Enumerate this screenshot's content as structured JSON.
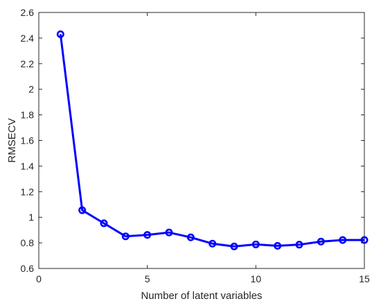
{
  "chart_data": {
    "type": "line",
    "title": "",
    "xlabel": "Number of latent variables",
    "ylabel": "RMSECV",
    "xlim": [
      0,
      15
    ],
    "ylim": [
      0.6,
      2.6
    ],
    "xticks": [
      0,
      5,
      10,
      15
    ],
    "yticks": [
      0.6,
      0.8,
      1,
      1.2,
      1.4,
      1.6,
      1.8,
      2,
      2.2,
      2.4,
      2.6
    ],
    "xtick_labels": [
      "0",
      "5",
      "10",
      "15"
    ],
    "ytick_labels": [
      "0.6",
      "0.8",
      "1",
      "1.2",
      "1.4",
      "1.6",
      "1.8",
      "2",
      "2.2",
      "2.4",
      "2.6"
    ],
    "grid": false,
    "series": [
      {
        "color": "#0000ff",
        "marker": "circle",
        "x": [
          1,
          2,
          3,
          4,
          5,
          6,
          7,
          8,
          9,
          10,
          11,
          12,
          13,
          14,
          15
        ],
        "y": [
          2.43,
          1.055,
          0.953,
          0.851,
          0.862,
          0.881,
          0.843,
          0.794,
          0.772,
          0.788,
          0.777,
          0.786,
          0.81,
          0.822,
          0.822
        ]
      }
    ]
  }
}
